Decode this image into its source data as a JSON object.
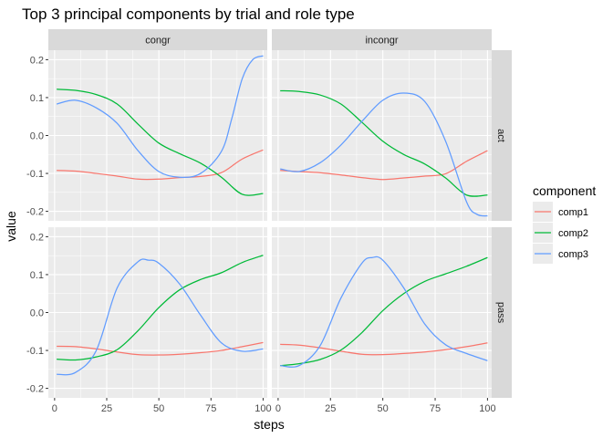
{
  "chart_data": {
    "type": "line",
    "title": "Top 3 principal components by trial and role type",
    "xlabel": "steps",
    "ylabel": "value",
    "xlim": [
      -3,
      102
    ],
    "ylim": [
      -0.225,
      0.225
    ],
    "x_ticks": [
      0,
      25,
      50,
      75,
      100
    ],
    "x_tick_labels": [
      "0",
      "25",
      "50",
      "75",
      "100"
    ],
    "y_ticks": [
      -0.2,
      -0.1,
      0.0,
      0.1,
      0.2
    ],
    "y_tick_labels": [
      "-0.2",
      "-0.1",
      "0.0",
      "0.1",
      "0.2"
    ],
    "grid": true,
    "legend": {
      "title": "component",
      "position": "right",
      "entries": [
        {
          "name": "comp1",
          "color": "#F8766D"
        },
        {
          "name": "comp2",
          "color": "#00BA38"
        },
        {
          "name": "comp3",
          "color": "#619CFF"
        }
      ]
    },
    "facet_columns": [
      "congr",
      "incongr"
    ],
    "facet_rows": [
      "act",
      "pass"
    ],
    "panels": [
      {
        "col": "congr",
        "row": "act",
        "series": [
          {
            "name": "comp1",
            "x": [
              1,
              10,
              20,
              30,
              40,
              50,
              60,
              70,
              80,
              90,
              100
            ],
            "y": [
              -0.092,
              -0.094,
              -0.1,
              -0.107,
              -0.115,
              -0.115,
              -0.111,
              -0.108,
              -0.098,
              -0.062,
              -0.038
            ]
          },
          {
            "name": "comp2",
            "x": [
              1,
              10,
              20,
              30,
              40,
              50,
              60,
              70,
              80,
              90,
              100
            ],
            "y": [
              0.122,
              0.119,
              0.108,
              0.083,
              0.03,
              -0.02,
              -0.048,
              -0.073,
              -0.11,
              -0.155,
              -0.153
            ]
          },
          {
            "name": "comp3",
            "x": [
              1,
              10,
              20,
              30,
              40,
              50,
              60,
              70,
              80,
              85,
              90,
              95,
              100
            ],
            "y": [
              0.083,
              0.093,
              0.073,
              0.032,
              -0.04,
              -0.095,
              -0.11,
              -0.1,
              -0.042,
              0.045,
              0.15,
              0.2,
              0.21
            ]
          }
        ]
      },
      {
        "col": "incongr",
        "row": "act",
        "series": [
          {
            "name": "comp1",
            "x": [
              1,
              10,
              20,
              30,
              40,
              50,
              60,
              70,
              80,
              90,
              100
            ],
            "y": [
              -0.092,
              -0.095,
              -0.098,
              -0.104,
              -0.111,
              -0.116,
              -0.112,
              -0.107,
              -0.101,
              -0.068,
              -0.04
            ]
          },
          {
            "name": "comp2",
            "x": [
              1,
              10,
              20,
              30,
              40,
              50,
              60,
              70,
              80,
              90,
              100
            ],
            "y": [
              0.118,
              0.116,
              0.107,
              0.083,
              0.035,
              -0.015,
              -0.05,
              -0.075,
              -0.112,
              -0.157,
              -0.157
            ]
          },
          {
            "name": "comp3",
            "x": [
              1,
              10,
              20,
              30,
              40,
              50,
              60,
              70,
              80,
              90,
              95,
              100
            ],
            "y": [
              -0.088,
              -0.095,
              -0.072,
              -0.025,
              0.037,
              0.093,
              0.112,
              0.09,
              -0.015,
              -0.175,
              -0.208,
              -0.212
            ]
          }
        ]
      },
      {
        "col": "congr",
        "row": "pass",
        "series": [
          {
            "name": "comp1",
            "x": [
              1,
              10,
              20,
              30,
              40,
              50,
              60,
              70,
              80,
              90,
              100
            ],
            "y": [
              -0.089,
              -0.09,
              -0.096,
              -0.104,
              -0.111,
              -0.112,
              -0.11,
              -0.106,
              -0.1,
              -0.09,
              -0.079
            ]
          },
          {
            "name": "comp2",
            "x": [
              1,
              10,
              20,
              30,
              40,
              50,
              60,
              70,
              80,
              90,
              100
            ],
            "y": [
              -0.123,
              -0.125,
              -0.117,
              -0.098,
              -0.048,
              0.013,
              0.06,
              0.087,
              0.105,
              0.132,
              0.151
            ]
          },
          {
            "name": "comp3",
            "x": [
              1,
              10,
              20,
              30,
              40,
              45,
              50,
              60,
              70,
              80,
              90,
              100
            ],
            "y": [
              -0.163,
              -0.158,
              -0.1,
              0.065,
              0.134,
              0.138,
              0.13,
              0.075,
              -0.007,
              -0.08,
              -0.102,
              -0.096
            ]
          }
        ]
      },
      {
        "col": "incongr",
        "row": "pass",
        "series": [
          {
            "name": "comp1",
            "x": [
              1,
              10,
              20,
              30,
              40,
              50,
              60,
              70,
              80,
              90,
              100
            ],
            "y": [
              -0.084,
              -0.086,
              -0.093,
              -0.102,
              -0.11,
              -0.111,
              -0.108,
              -0.104,
              -0.098,
              -0.09,
              -0.08
            ]
          },
          {
            "name": "comp2",
            "x": [
              1,
              10,
              20,
              30,
              40,
              50,
              60,
              70,
              80,
              90,
              100
            ],
            "y": [
              -0.14,
              -0.135,
              -0.124,
              -0.099,
              -0.053,
              0.005,
              0.05,
              0.082,
              0.102,
              0.122,
              0.145
            ]
          },
          {
            "name": "comp3",
            "x": [
              1,
              10,
              20,
              30,
              40,
              45,
              50,
              60,
              70,
              80,
              90,
              100
            ],
            "y": [
              -0.14,
              -0.14,
              -0.088,
              0.038,
              0.13,
              0.145,
              0.138,
              0.065,
              -0.03,
              -0.085,
              -0.108,
              -0.127
            ]
          }
        ]
      }
    ]
  }
}
